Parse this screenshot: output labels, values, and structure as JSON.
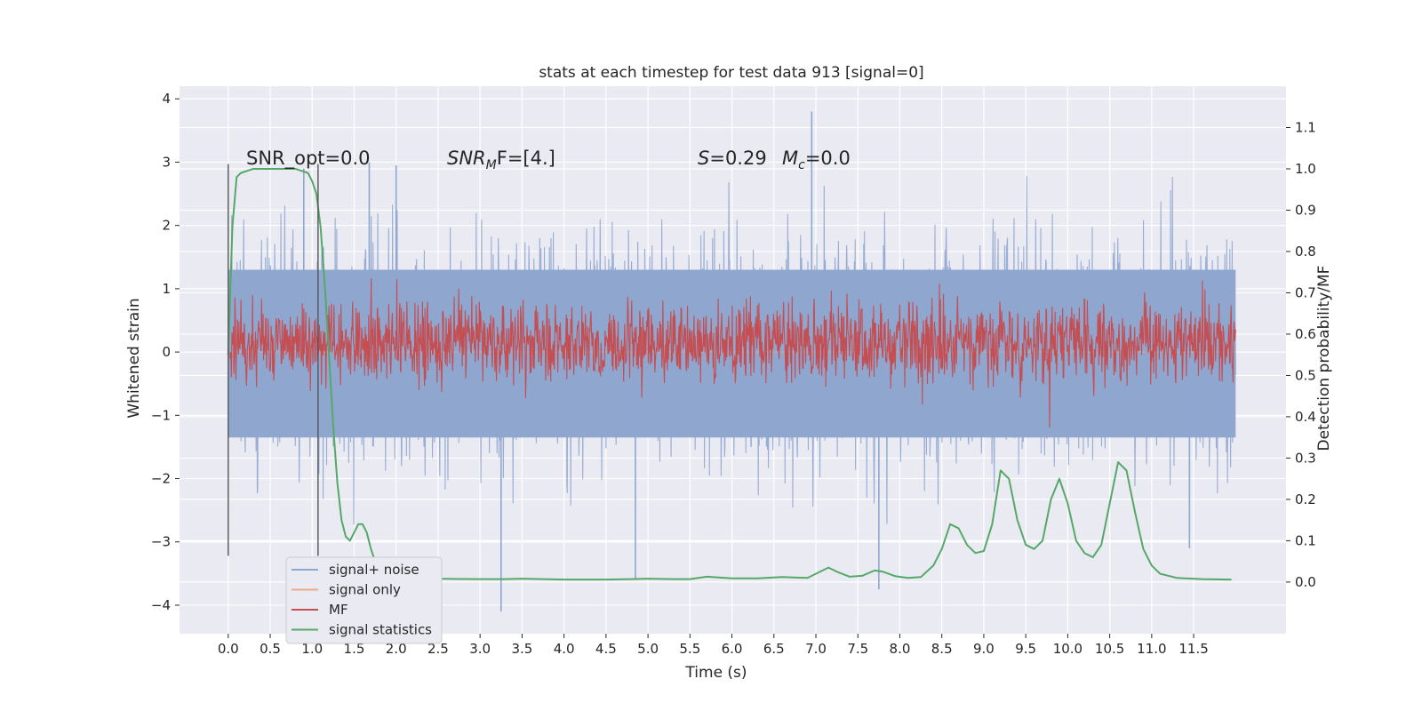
{
  "chart_data": {
    "type": "line",
    "title": "stats at each timestep for test data 913 [signal=0]",
    "xlabel": "Time (s)",
    "ylabel_left": "Whitened strain",
    "ylabel_right": "Detection probability/MF",
    "xlim": [
      -0.58,
      12.6
    ],
    "ylim_left": [
      -4.45,
      4.2
    ],
    "ylim_right": [
      -0.125,
      1.2
    ],
    "x_ticks": [
      "0.0",
      "0.5",
      "1.0",
      "1.5",
      "2.0",
      "2.5",
      "3.0",
      "3.5",
      "4.0",
      "4.5",
      "5.0",
      "5.5",
      "6.0",
      "6.5",
      "7.0",
      "7.5",
      "8.0",
      "8.5",
      "9.0",
      "9.5",
      "10.0",
      "10.5",
      "11.0",
      "11.5"
    ],
    "y_ticks_left": [
      "4",
      "3",
      "2",
      "1",
      "0",
      "−1",
      "−2",
      "−3",
      "−4"
    ],
    "y_ticks_right": [
      "1.1",
      "1.0",
      "0.9",
      "0.8",
      "0.7",
      "0.6",
      "0.5",
      "0.4",
      "0.3",
      "0.2",
      "0.1",
      "0.0"
    ],
    "grid": true,
    "legend_placement": "lower-left",
    "annotations": {
      "snr_opt": "SNR_opt=0.0",
      "snr_mf_base": "SNR",
      "snr_mf_sub": "M",
      "snr_mf_rest": "F=[4.]",
      "s_label": "S",
      "s_value": "=0.29",
      "mc_base": "M",
      "mc_sub": "c",
      "mc_value": "=0.0"
    },
    "vertical_lines_x": [
      0.0,
      1.07
    ],
    "series": [
      {
        "name": "signal+ noise",
        "axis": "left",
        "color": "#8fa6cf",
        "style": "noise band",
        "x_range": [
          0.0,
          12.0
        ],
        "band_inner": [
          -1.35,
          1.3
        ],
        "spike_peaks": [
          [
            0.9,
            2.9
          ],
          [
            1.68,
            3.0
          ],
          [
            2.0,
            2.95
          ],
          [
            3.25,
            -4.1
          ],
          [
            4.85,
            -3.6
          ],
          [
            6.95,
            3.8
          ],
          [
            7.75,
            -3.75
          ],
          [
            11.45,
            -3.1
          ]
        ]
      },
      {
        "name": "signal only",
        "axis": "left",
        "color": "#eaa987",
        "x": [
          0.0,
          12.0
        ],
        "y": [
          0.0,
          0.0
        ]
      },
      {
        "name": "MF",
        "axis": "right",
        "color": "#c44e52",
        "style": "noise band",
        "x_range": [
          0.02,
          12.0
        ],
        "band": [
          0.525,
          0.63
        ]
      },
      {
        "name": "signal statistics",
        "axis": "right",
        "color": "#55a868",
        "x": [
          0.0,
          0.05,
          0.1,
          0.15,
          0.3,
          0.5,
          0.8,
          0.95,
          1.0,
          1.05,
          1.1,
          1.15,
          1.2,
          1.25,
          1.3,
          1.35,
          1.4,
          1.45,
          1.5,
          1.55,
          1.6,
          1.65,
          1.7,
          1.75,
          1.8,
          1.85,
          1.9,
          2.0,
          2.2,
          2.5,
          3.0,
          3.3,
          3.5,
          4.0,
          4.5,
          4.8,
          5.0,
          5.3,
          5.5,
          5.7,
          6.0,
          6.3,
          6.6,
          6.9,
          7.05,
          7.15,
          7.25,
          7.4,
          7.55,
          7.7,
          7.8,
          7.95,
          8.1,
          8.25,
          8.4,
          8.5,
          8.6,
          8.7,
          8.8,
          8.9,
          9.0,
          9.1,
          9.2,
          9.3,
          9.4,
          9.5,
          9.6,
          9.7,
          9.8,
          9.9,
          10.0,
          10.1,
          10.2,
          10.3,
          10.4,
          10.5,
          10.6,
          10.7,
          10.8,
          10.9,
          11.0,
          11.1,
          11.3,
          11.6,
          11.95
        ],
        "y": [
          0.55,
          0.86,
          0.98,
          0.99,
          1.0,
          1.0,
          1.0,
          0.99,
          0.97,
          0.94,
          0.86,
          0.72,
          0.55,
          0.38,
          0.24,
          0.15,
          0.11,
          0.1,
          0.12,
          0.14,
          0.14,
          0.12,
          0.08,
          0.05,
          0.032,
          0.022,
          0.017,
          0.013,
          0.01,
          0.008,
          0.007,
          0.007,
          0.008,
          0.006,
          0.006,
          0.007,
          0.008,
          0.007,
          0.007,
          0.013,
          0.009,
          0.009,
          0.012,
          0.01,
          0.025,
          0.035,
          0.025,
          0.013,
          0.015,
          0.028,
          0.025,
          0.014,
          0.01,
          0.012,
          0.04,
          0.08,
          0.14,
          0.13,
          0.09,
          0.07,
          0.075,
          0.14,
          0.27,
          0.25,
          0.15,
          0.09,
          0.08,
          0.1,
          0.2,
          0.25,
          0.19,
          0.1,
          0.07,
          0.06,
          0.09,
          0.19,
          0.29,
          0.27,
          0.17,
          0.08,
          0.04,
          0.02,
          0.01,
          0.007,
          0.006
        ]
      }
    ]
  }
}
